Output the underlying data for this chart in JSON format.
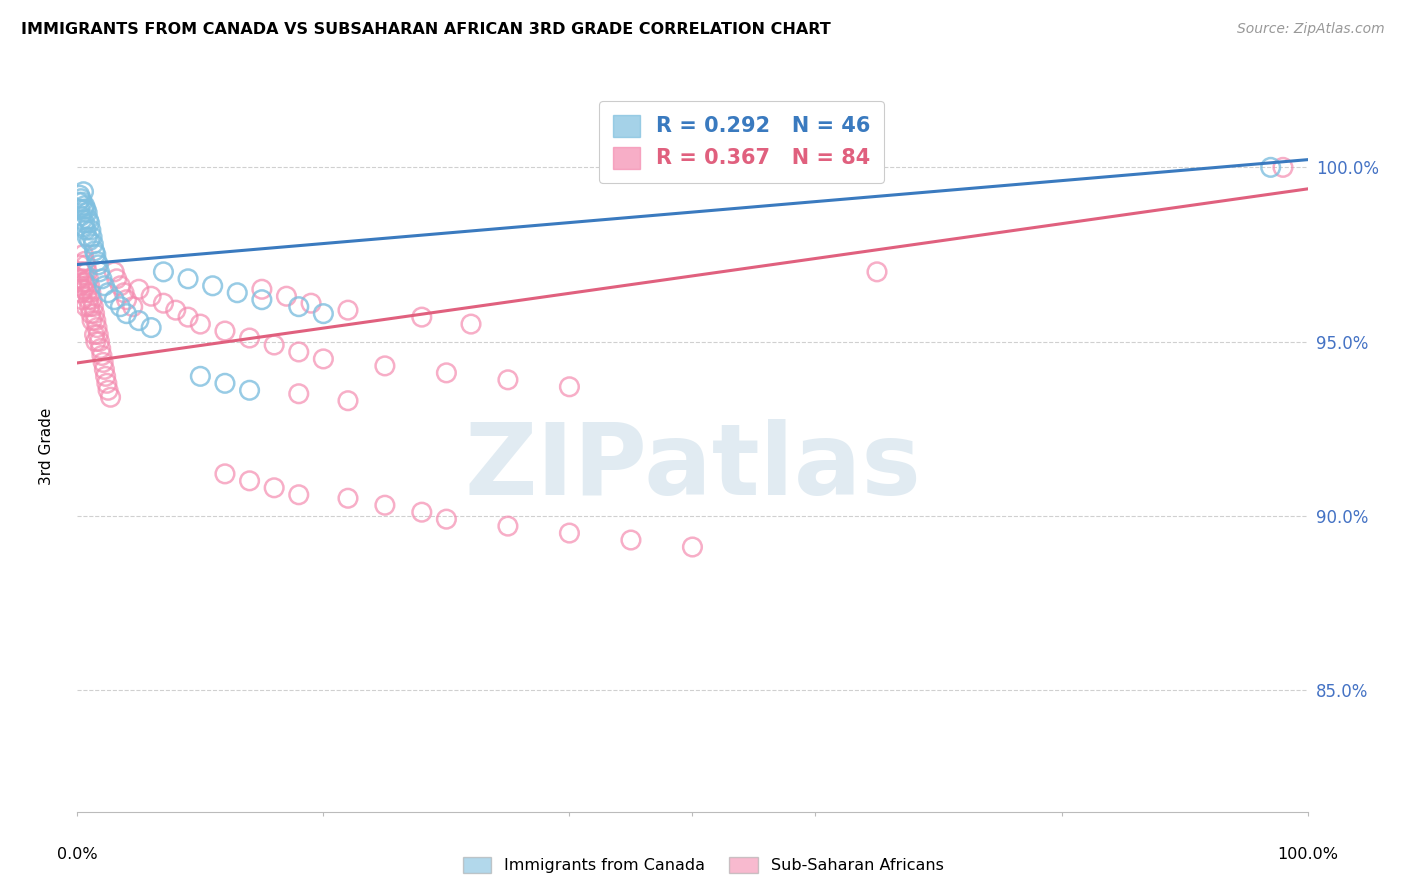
{
  "title": "IMMIGRANTS FROM CANADA VS SUBSAHARAN AFRICAN 3RD GRADE CORRELATION CHART",
  "source": "Source: ZipAtlas.com",
  "ylabel": "3rd Grade",
  "legend_label1": "Immigrants from Canada",
  "legend_label2": "Sub-Saharan Africans",
  "R_canada": 0.292,
  "N_canada": 46,
  "R_africa": 0.367,
  "N_africa": 84,
  "color_canada": "#7fbfdf",
  "color_africa": "#f48cb0",
  "line_color_canada": "#3a7abf",
  "line_color_africa": "#e0607e",
  "xlim": [
    0.0,
    1.0
  ],
  "ylim": [
    0.815,
    1.025
  ],
  "yticks": [
    0.85,
    0.9,
    0.95,
    1.0
  ],
  "ytick_labels": [
    "85.0%",
    "90.0%",
    "95.0%",
    "100.0%"
  ],
  "watermark": "ZIPatlas",
  "canada_x": [
    0.001,
    0.002,
    0.002,
    0.003,
    0.003,
    0.004,
    0.004,
    0.005,
    0.005,
    0.005,
    0.006,
    0.006,
    0.007,
    0.007,
    0.008,
    0.008,
    0.009,
    0.01,
    0.01,
    0.011,
    0.012,
    0.013,
    0.014,
    0.015,
    0.016,
    0.017,
    0.018,
    0.02,
    0.022,
    0.025,
    0.03,
    0.035,
    0.04,
    0.05,
    0.06,
    0.07,
    0.09,
    0.11,
    0.13,
    0.15,
    0.18,
    0.2,
    0.1,
    0.12,
    0.14,
    0.97
  ],
  "canada_y": [
    0.99,
    0.992,
    0.988,
    0.991,
    0.986,
    0.99,
    0.985,
    0.993,
    0.988,
    0.983,
    0.989,
    0.984,
    0.988,
    0.982,
    0.987,
    0.98,
    0.985,
    0.984,
    0.979,
    0.982,
    0.98,
    0.978,
    0.976,
    0.975,
    0.973,
    0.972,
    0.97,
    0.968,
    0.966,
    0.964,
    0.962,
    0.96,
    0.958,
    0.956,
    0.954,
    0.97,
    0.968,
    0.966,
    0.964,
    0.962,
    0.96,
    0.958,
    0.94,
    0.938,
    0.936,
    1.0
  ],
  "africa_x": [
    0.001,
    0.002,
    0.002,
    0.003,
    0.003,
    0.004,
    0.004,
    0.005,
    0.005,
    0.005,
    0.006,
    0.006,
    0.007,
    0.007,
    0.007,
    0.008,
    0.008,
    0.009,
    0.009,
    0.01,
    0.01,
    0.011,
    0.011,
    0.012,
    0.012,
    0.013,
    0.014,
    0.014,
    0.015,
    0.015,
    0.016,
    0.017,
    0.018,
    0.019,
    0.02,
    0.021,
    0.022,
    0.023,
    0.024,
    0.025,
    0.027,
    0.03,
    0.032,
    0.035,
    0.038,
    0.04,
    0.045,
    0.05,
    0.06,
    0.07,
    0.08,
    0.09,
    0.1,
    0.12,
    0.14,
    0.16,
    0.18,
    0.2,
    0.25,
    0.3,
    0.35,
    0.4,
    0.18,
    0.22,
    0.65,
    0.15,
    0.17,
    0.19,
    0.22,
    0.28,
    0.32,
    0.22,
    0.25,
    0.28,
    0.3,
    0.35,
    0.4,
    0.45,
    0.5,
    0.98,
    0.12,
    0.14,
    0.16,
    0.18
  ],
  "africa_y": [
    0.968,
    0.972,
    0.966,
    0.97,
    0.964,
    0.968,
    0.962,
    0.975,
    0.97,
    0.965,
    0.973,
    0.967,
    0.972,
    0.966,
    0.96,
    0.97,
    0.964,
    0.968,
    0.962,
    0.966,
    0.96,
    0.964,
    0.958,
    0.962,
    0.956,
    0.96,
    0.958,
    0.952,
    0.956,
    0.95,
    0.954,
    0.952,
    0.95,
    0.948,
    0.946,
    0.944,
    0.942,
    0.94,
    0.938,
    0.936,
    0.934,
    0.97,
    0.968,
    0.966,
    0.964,
    0.962,
    0.96,
    0.965,
    0.963,
    0.961,
    0.959,
    0.957,
    0.955,
    0.953,
    0.951,
    0.949,
    0.947,
    0.945,
    0.943,
    0.941,
    0.939,
    0.937,
    0.935,
    0.933,
    0.97,
    0.965,
    0.963,
    0.961,
    0.959,
    0.957,
    0.955,
    0.905,
    0.903,
    0.901,
    0.899,
    0.897,
    0.895,
    0.893,
    0.891,
    1.0,
    0.912,
    0.91,
    0.908,
    0.906
  ]
}
